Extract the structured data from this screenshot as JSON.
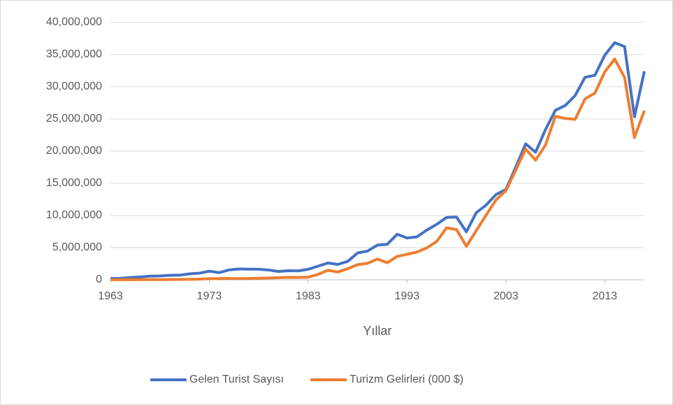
{
  "chart_data": {
    "type": "line",
    "x": [
      1963,
      1964,
      1965,
      1966,
      1967,
      1968,
      1969,
      1970,
      1971,
      1972,
      1973,
      1974,
      1975,
      1976,
      1977,
      1978,
      1979,
      1980,
      1981,
      1982,
      1983,
      1984,
      1985,
      1986,
      1987,
      1988,
      1989,
      1990,
      1991,
      1992,
      1993,
      1994,
      1995,
      1996,
      1997,
      1998,
      1999,
      2000,
      2001,
      2002,
      2003,
      2004,
      2005,
      2006,
      2007,
      2008,
      2009,
      2010,
      2011,
      2012,
      2013,
      2014,
      2015,
      2016,
      2017
    ],
    "series": [
      {
        "name": "Gelen Turist Sayısı",
        "color": "#4472c4",
        "values": [
          200000,
          230000,
          360000,
          440000,
          570000,
          600000,
          690000,
          720000,
          930000,
          1030000,
          1340000,
          1110000,
          1540000,
          1680000,
          1660000,
          1640000,
          1520000,
          1290000,
          1410000,
          1390000,
          1630000,
          2120000,
          2610000,
          2390000,
          2860000,
          4170000,
          4460000,
          5390000,
          5520000,
          7080000,
          6500000,
          6670000,
          7730000,
          8610000,
          9690000,
          9750000,
          7460000,
          10430000,
          11620000,
          13250000,
          14030000,
          17520000,
          21120000,
          19820000,
          23340000,
          26340000,
          27080000,
          28630000,
          31460000,
          31780000,
          34910000,
          36840000,
          36240000,
          25350000,
          32410000
        ]
      },
      {
        "name": "Turizm Gelirleri (000 $)",
        "color": "#ed7d31",
        "values": [
          7700,
          8000,
          13800,
          25000,
          31000,
          33000,
          36000,
          51600,
          62000,
          103000,
          171000,
          193000,
          201000,
          180000,
          204000,
          230000,
          281000,
          327000,
          381000,
          370000,
          411000,
          840000,
          1482000,
          1215000,
          1721000,
          2355000,
          2557000,
          3225000,
          2654000,
          3639000,
          3959000,
          4321000,
          4957000,
          5962000,
          8088000,
          7809000,
          5203000,
          7636000,
          10067000,
          12421000,
          13855000,
          17077000,
          20322000,
          18594000,
          20943000,
          25415000,
          25064000,
          24931000,
          28116000,
          29007000,
          32309000,
          34305000,
          31465000,
          22107000,
          26284000
        ]
      }
    ],
    "x_label": "Yıllar",
    "xlim": [
      1963,
      2017
    ],
    "xticks": [
      1963,
      1973,
      1983,
      1993,
      2003,
      2013
    ],
    "ylim": [
      0,
      40000000
    ],
    "yticks": [
      0,
      {
        "value": 5000000,
        "label": "5,000,000"
      },
      {
        "value": 10000000,
        "label": "10,000,000"
      },
      {
        "value": 15000000,
        "label": "15,000,000"
      },
      {
        "value": 20000000,
        "label": "20,000,000"
      },
      {
        "value": 25000000,
        "label": "25,000,000"
      },
      {
        "value": 30000000,
        "label": "30,000,000"
      },
      {
        "value": 35000000,
        "label": "35,000,000"
      },
      {
        "value": 40000000,
        "label": "40,000,000"
      }
    ],
    "grid": true,
    "legend": "bottom"
  }
}
